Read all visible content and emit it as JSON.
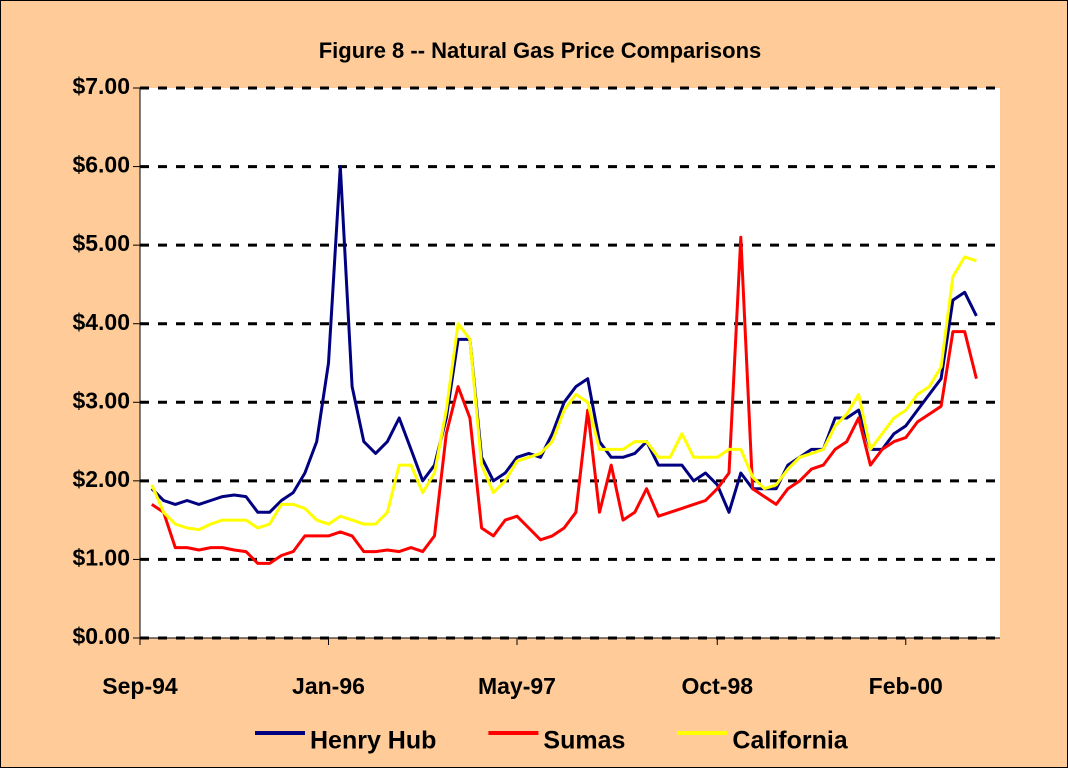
{
  "chart_data": {
    "type": "line",
    "title": "Figure 8  --  Natural Gas Price Comparisons",
    "x": [
      "1994-10",
      "1994-11",
      "1994-12",
      "1995-01",
      "1995-02",
      "1995-03",
      "1995-04",
      "1995-05",
      "1995-06",
      "1995-07",
      "1995-08",
      "1995-09",
      "1995-10",
      "1995-11",
      "1995-12",
      "1996-01",
      "1996-02",
      "1996-03",
      "1996-04",
      "1996-05",
      "1996-06",
      "1996-07",
      "1996-08",
      "1996-09",
      "1996-10",
      "1996-11",
      "1996-12",
      "1997-01",
      "1997-02",
      "1997-03",
      "1997-04",
      "1997-05",
      "1997-06",
      "1997-07",
      "1997-08",
      "1997-09",
      "1997-10",
      "1997-11",
      "1997-12",
      "1998-01",
      "1998-02",
      "1998-03",
      "1998-04",
      "1998-05",
      "1998-06",
      "1998-07",
      "1998-08",
      "1998-09",
      "1998-10",
      "1998-11",
      "1998-12",
      "1999-01",
      "1999-02",
      "1999-03",
      "1999-04",
      "1999-05",
      "1999-06",
      "1999-07",
      "1999-08",
      "1999-09",
      "1999-10",
      "1999-11",
      "1999-12",
      "2000-01",
      "2000-02",
      "2000-03",
      "2000-04",
      "2000-05",
      "2000-06",
      "2000-07",
      "2000-08"
    ],
    "series": [
      {
        "name": "Henry Hub",
        "color": "#000080",
        "values": [
          1.9,
          1.75,
          1.7,
          1.75,
          1.7,
          1.75,
          1.8,
          1.82,
          1.8,
          1.6,
          1.6,
          1.75,
          1.85,
          2.1,
          2.5,
          3.5,
          6.0,
          3.2,
          2.5,
          2.35,
          2.5,
          2.8,
          2.4,
          2.0,
          2.2,
          2.8,
          3.8,
          3.8,
          2.3,
          2.0,
          2.1,
          2.3,
          2.35,
          2.3,
          2.6,
          3.0,
          3.2,
          3.3,
          2.5,
          2.3,
          2.3,
          2.35,
          2.5,
          2.2,
          2.2,
          2.2,
          2.0,
          2.1,
          1.95,
          1.6,
          2.1,
          1.9,
          1.9,
          1.9,
          2.2,
          2.3,
          2.4,
          2.4,
          2.8,
          2.8,
          2.9,
          2.4,
          2.4,
          2.6,
          2.7,
          2.9,
          3.1,
          3.3,
          4.3,
          4.4,
          4.1
        ]
      },
      {
        "name": "Sumas",
        "color": "#FF0000",
        "values": [
          1.7,
          1.6,
          1.15,
          1.15,
          1.12,
          1.15,
          1.15,
          1.12,
          1.1,
          0.95,
          0.95,
          1.05,
          1.1,
          1.3,
          1.3,
          1.3,
          1.35,
          1.3,
          1.1,
          1.1,
          1.12,
          1.1,
          1.15,
          1.1,
          1.3,
          2.6,
          3.2,
          2.8,
          1.4,
          1.3,
          1.5,
          1.55,
          1.4,
          1.25,
          1.3,
          1.4,
          1.6,
          2.9,
          1.6,
          2.2,
          1.5,
          1.6,
          1.9,
          1.55,
          1.6,
          1.65,
          1.7,
          1.75,
          1.9,
          2.1,
          5.1,
          1.9,
          1.8,
          1.7,
          1.9,
          2.0,
          2.15,
          2.2,
          2.4,
          2.5,
          2.8,
          2.2,
          2.4,
          2.5,
          2.55,
          2.75,
          2.85,
          2.95,
          3.9,
          3.9,
          3.3
        ]
      },
      {
        "name": "California",
        "color": "#FFFF00",
        "values": [
          1.95,
          1.6,
          1.45,
          1.4,
          1.38,
          1.45,
          1.5,
          1.5,
          1.5,
          1.4,
          1.45,
          1.7,
          1.7,
          1.65,
          1.5,
          1.45,
          1.55,
          1.5,
          1.45,
          1.45,
          1.6,
          2.2,
          2.2,
          1.85,
          2.1,
          2.9,
          4.0,
          3.8,
          2.2,
          1.85,
          2.0,
          2.25,
          2.3,
          2.35,
          2.5,
          2.9,
          3.1,
          3.0,
          2.4,
          2.4,
          2.4,
          2.5,
          2.5,
          2.3,
          2.3,
          2.6,
          2.3,
          2.3,
          2.3,
          2.4,
          2.4,
          2.05,
          1.9,
          1.95,
          2.15,
          2.3,
          2.35,
          2.4,
          2.7,
          2.85,
          3.1,
          2.4,
          2.6,
          2.8,
          2.9,
          3.1,
          3.2,
          3.45,
          4.6,
          4.85,
          4.8
        ]
      }
    ],
    "xlim": [
      "1994-09",
      "2000-10"
    ],
    "xticks": [
      {
        "value": "1994-09",
        "label": "Sep-94"
      },
      {
        "value": "1996-01",
        "label": "Jan-96"
      },
      {
        "value": "1997-05",
        "label": "May-97"
      },
      {
        "value": "1998-10",
        "label": "Oct-98"
      },
      {
        "value": "2000-02",
        "label": "Feb-00"
      }
    ],
    "ylim": [
      0,
      7
    ],
    "yticks": [
      {
        "value": 0,
        "label": "$0.00"
      },
      {
        "value": 1,
        "label": "$1.00"
      },
      {
        "value": 2,
        "label": "$2.00"
      },
      {
        "value": 3,
        "label": "$3.00"
      },
      {
        "value": 4,
        "label": "$4.00"
      },
      {
        "value": 5,
        "label": "$5.00"
      },
      {
        "value": 6,
        "label": "$6.00"
      },
      {
        "value": 7,
        "label": "$7.00"
      }
    ],
    "grid": true,
    "legend": "bottom"
  }
}
